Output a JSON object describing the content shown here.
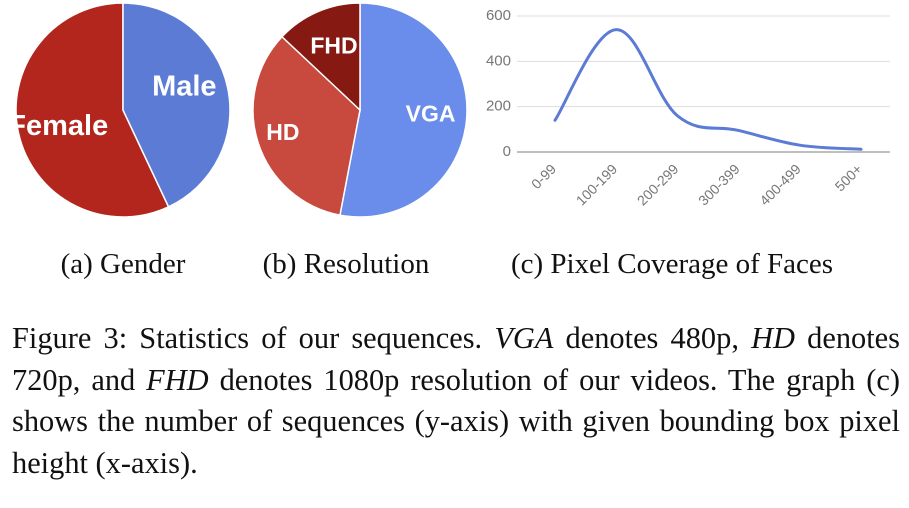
{
  "chart_data": [
    {
      "type": "pie",
      "title": "(a) Gender",
      "labels": [
        "Female",
        "Male"
      ],
      "values": [
        57,
        43
      ],
      "colors": [
        "#B3261E",
        "#5B7BD5"
      ]
    },
    {
      "type": "pie",
      "title": "(b) Resolution",
      "labels": [
        "VGA",
        "HD",
        "FHD"
      ],
      "values": [
        53,
        34,
        13
      ],
      "colors": [
        "#6A8CEB",
        "#C8493E",
        "#861A12"
      ]
    },
    {
      "type": "line",
      "title": "(c) Pixel Coverage of Faces",
      "categories": [
        "0-99",
        "100-199",
        "200-299",
        "300-399",
        "400-499",
        "500+"
      ],
      "values": [
        140,
        540,
        160,
        95,
        30,
        12
      ],
      "yticks": [
        "0",
        "200",
        "400",
        "600"
      ],
      "ylim": [
        0,
        600
      ],
      "grid": true,
      "color": "#5B7BD5"
    }
  ],
  "caption": {
    "prefix": "Figure 3: Statistics of our sequences. ",
    "vga_term": "VGA",
    "vga_text": " denotes 480p, ",
    "hd_term": "HD",
    "hd_text": " denotes 720p, and ",
    "fhd_term": "FHD",
    "fhd_text": " denotes 1080p resolution of our videos. The graph (c) shows the number of sequences (y-axis) with given bounding box pixel height (x-axis)."
  }
}
